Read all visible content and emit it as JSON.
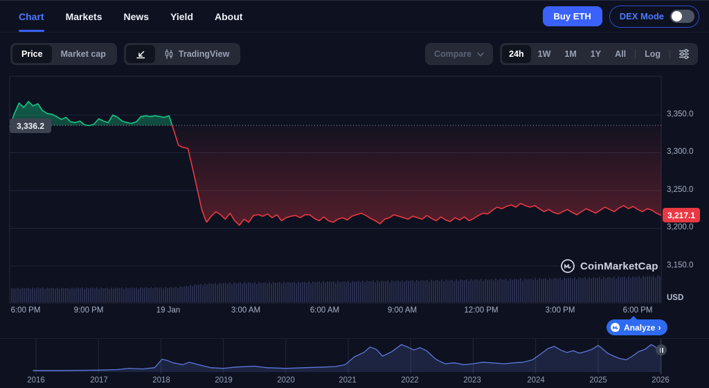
{
  "colors": {
    "background": "#0d1120",
    "accent_blue": "#3a61fb",
    "link_blue": "#4b78ff",
    "green": "#16c784",
    "red": "#ea3943",
    "volume_bar": "#414a75",
    "mini_line": "#5d79d8"
  },
  "nav": {
    "items": [
      {
        "label": "Chart",
        "active": true
      },
      {
        "label": "Markets",
        "active": false
      },
      {
        "label": "News",
        "active": false
      },
      {
        "label": "Yield",
        "active": false
      },
      {
        "label": "About",
        "active": false
      }
    ],
    "buy_eth": "Buy ETH",
    "dex_mode": "DEX Mode"
  },
  "toolbar": {
    "price": "Price",
    "market_cap": "Market cap",
    "tradingview": "TradingView",
    "compare": "Compare",
    "ranges": [
      "24h",
      "1W",
      "1M",
      "1Y",
      "All"
    ],
    "active_range": "24h",
    "log": "Log"
  },
  "chart": {
    "watermark": "CoinMarketCap",
    "analyze_label": "Analyze",
    "analyze_chevron": "›"
  },
  "chart_data": [
    {
      "type": "line",
      "title": "ETH/USD 24-hour price",
      "x_ticks": [
        "6:00 PM",
        "9:00 PM",
        "19 Jan",
        "3:00 AM",
        "6:00 AM",
        "9:00 AM",
        "12:00 PM",
        "3:00 PM",
        "6:00 PM"
      ],
      "y_ticks": [
        3350,
        3300,
        3250,
        3200,
        3150
      ],
      "y_tick_labels": [
        "3,350.0",
        "3,300.0",
        "3,250.0",
        "3,200.0",
        "3,150.0"
      ],
      "ylabel": "USD",
      "ylim": [
        3100,
        3400
      ],
      "prev_close": 3336.2,
      "prev_close_label": "3,336.2",
      "last_price": 3217.1,
      "last_price_label": "3,217.1",
      "up_color": "#16c784",
      "down_color": "#ea3943",
      "prices": [
        3334,
        3352,
        3366,
        3360,
        3368,
        3362,
        3365,
        3356,
        3352,
        3351,
        3348,
        3344,
        3347,
        3341,
        3340,
        3342,
        3337,
        3336,
        3338,
        3345,
        3342,
        3340,
        3350,
        3347,
        3342,
        3340,
        3339,
        3341,
        3348,
        3349,
        3348,
        3349,
        3348,
        3347,
        3349,
        3330,
        3310,
        3307,
        3306,
        3280,
        3252,
        3224,
        3208,
        3216,
        3222,
        3218,
        3212,
        3220,
        3210,
        3204,
        3212,
        3208,
        3217,
        3218,
        3216,
        3219,
        3214,
        3218,
        3210,
        3214,
        3216,
        3217,
        3214,
        3218,
        3218,
        3213,
        3210,
        3215,
        3210,
        3208,
        3212,
        3214,
        3211,
        3216,
        3218,
        3220,
        3217,
        3213,
        3210,
        3206,
        3212,
        3214,
        3218,
        3216,
        3214,
        3212,
        3216,
        3214,
        3212,
        3217,
        3213,
        3210,
        3215,
        3211,
        3209,
        3214,
        3211,
        3215,
        3210,
        3213,
        3217,
        3220,
        3219,
        3224,
        3228,
        3226,
        3229,
        3231,
        3228,
        3233,
        3230,
        3228,
        3230,
        3226,
        3222,
        3225,
        3221,
        3219,
        3222,
        3225,
        3221,
        3218,
        3222,
        3226,
        3223,
        3220,
        3224,
        3228,
        3225,
        3222,
        3227,
        3230,
        3226,
        3229,
        3225,
        3222,
        3226,
        3224,
        3220,
        3217.1
      ],
      "volume_rel": [
        0.52,
        0.52,
        0.53,
        0.52,
        0.52,
        0.53,
        0.53,
        0.52,
        0.53,
        0.53,
        0.54,
        0.54,
        0.55,
        0.62,
        0.68,
        0.7,
        0.71,
        0.72,
        0.72,
        0.73,
        0.74,
        0.74,
        0.75,
        0.76,
        0.76,
        0.77,
        0.78,
        0.78,
        0.79,
        0.8,
        0.81,
        0.81,
        0.82,
        0.83,
        0.84,
        0.85,
        0.85,
        0.86,
        0.87,
        0.88,
        0.89,
        0.9,
        0.91,
        0.92,
        0.93,
        0.94,
        0.96,
        0.98
      ]
    },
    {
      "type": "area",
      "title": "All-time range selector",
      "x_ticks": [
        "2016",
        "2017",
        "2018",
        "2019",
        "2020",
        "2021",
        "2022",
        "2023",
        "2024",
        "2025",
        "2026"
      ],
      "points": [
        [
          2015.95,
          0.03
        ],
        [
          2016.5,
          0.03
        ],
        [
          2017.0,
          0.04
        ],
        [
          2017.3,
          0.06
        ],
        [
          2017.5,
          0.1
        ],
        [
          2017.7,
          0.08
        ],
        [
          2017.9,
          0.12
        ],
        [
          2018.02,
          0.4
        ],
        [
          2018.1,
          0.36
        ],
        [
          2018.2,
          0.28
        ],
        [
          2018.35,
          0.22
        ],
        [
          2018.45,
          0.3
        ],
        [
          2018.6,
          0.22
        ],
        [
          2018.8,
          0.12
        ],
        [
          2019.0,
          0.1
        ],
        [
          2019.2,
          0.14
        ],
        [
          2019.5,
          0.17
        ],
        [
          2019.7,
          0.12
        ],
        [
          2020.0,
          0.1
        ],
        [
          2020.3,
          0.12
        ],
        [
          2020.6,
          0.14
        ],
        [
          2020.8,
          0.16
        ],
        [
          2020.95,
          0.22
        ],
        [
          2021.1,
          0.48
        ],
        [
          2021.25,
          0.62
        ],
        [
          2021.35,
          0.8
        ],
        [
          2021.45,
          0.72
        ],
        [
          2021.55,
          0.5
        ],
        [
          2021.7,
          0.65
        ],
        [
          2021.85,
          0.88
        ],
        [
          2021.95,
          0.8
        ],
        [
          2022.05,
          0.7
        ],
        [
          2022.15,
          0.78
        ],
        [
          2022.25,
          0.68
        ],
        [
          2022.4,
          0.4
        ],
        [
          2022.55,
          0.25
        ],
        [
          2022.7,
          0.28
        ],
        [
          2022.85,
          0.22
        ],
        [
          2023.0,
          0.25
        ],
        [
          2023.15,
          0.3
        ],
        [
          2023.3,
          0.28
        ],
        [
          2023.5,
          0.25
        ],
        [
          2023.65,
          0.28
        ],
        [
          2023.8,
          0.3
        ],
        [
          2023.95,
          0.38
        ],
        [
          2024.1,
          0.6
        ],
        [
          2024.2,
          0.75
        ],
        [
          2024.3,
          0.82
        ],
        [
          2024.4,
          0.7
        ],
        [
          2024.5,
          0.62
        ],
        [
          2024.6,
          0.68
        ],
        [
          2024.7,
          0.6
        ],
        [
          2024.8,
          0.65
        ],
        [
          2024.9,
          0.72
        ],
        [
          2025.0,
          0.85
        ],
        [
          2025.05,
          0.78
        ],
        [
          2025.15,
          0.6
        ],
        [
          2025.25,
          0.5
        ],
        [
          2025.35,
          0.42
        ],
        [
          2025.45,
          0.38
        ],
        [
          2025.55,
          0.5
        ],
        [
          2025.65,
          0.65
        ],
        [
          2025.75,
          0.72
        ],
        [
          2025.85,
          0.88
        ],
        [
          2025.92,
          0.8
        ],
        [
          2026.0,
          0.55
        ]
      ]
    }
  ]
}
